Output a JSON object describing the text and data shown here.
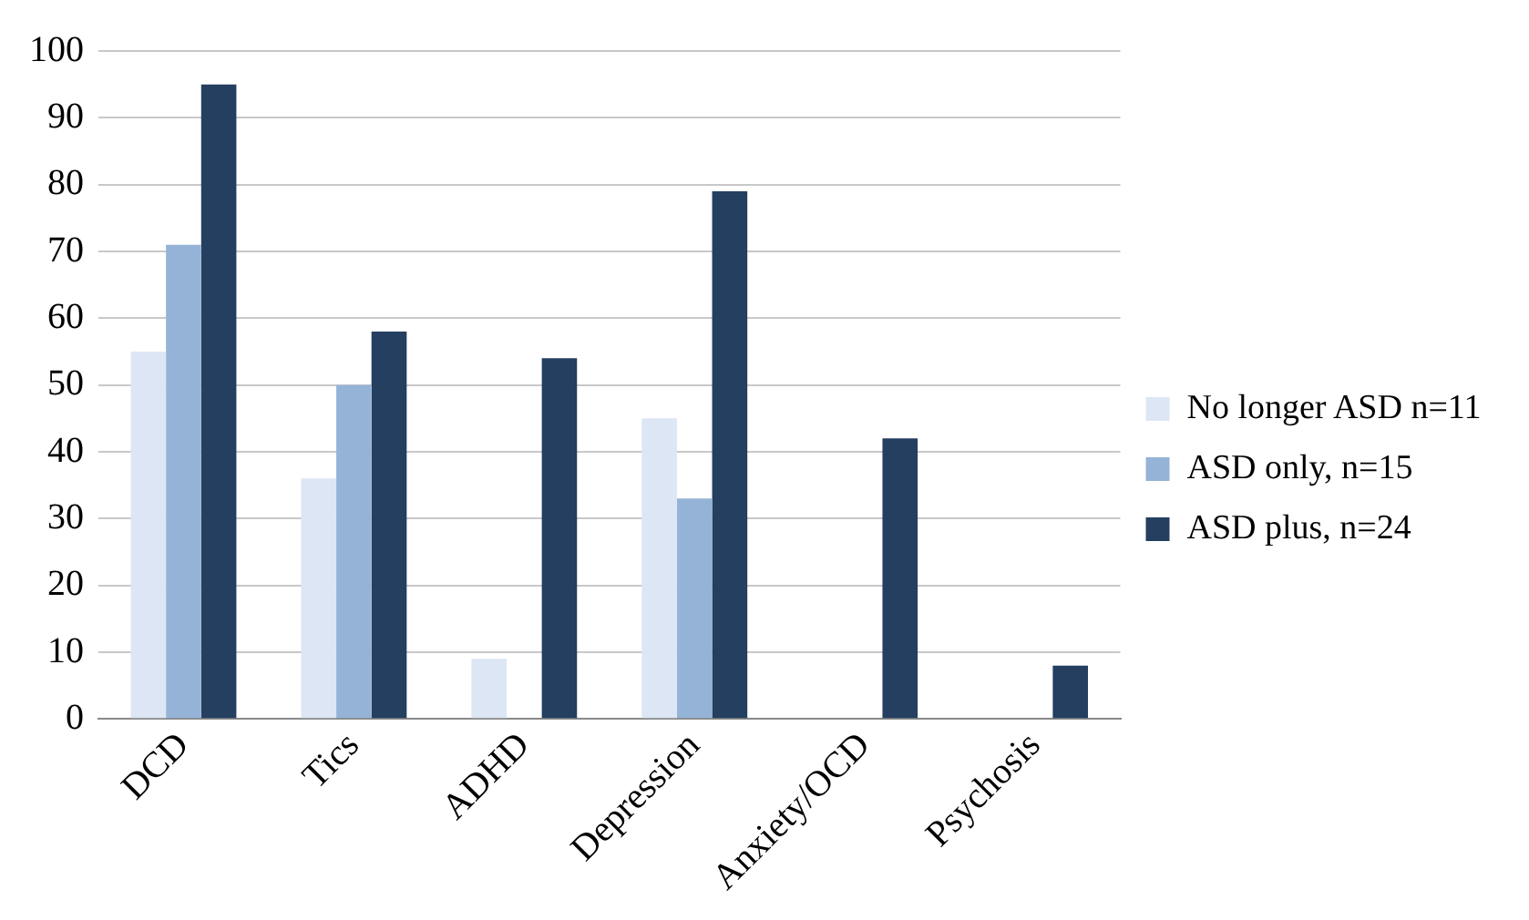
{
  "chart_data": {
    "type": "bar",
    "categories": [
      "DCD",
      "Tics",
      "ADHD",
      "Depression",
      "Anxiety/OCD",
      "Psychosis"
    ],
    "series": [
      {
        "name": "No longer ASD n=11",
        "color": "#dce6f4",
        "values": [
          55,
          36,
          9,
          45,
          0,
          0
        ]
      },
      {
        "name": "ASD only, n=15",
        "color": "#95b3d7",
        "values": [
          71,
          50,
          0,
          33,
          0,
          0
        ]
      },
      {
        "name": "ASD plus, n=24",
        "color": "#243f60",
        "values": [
          95,
          58,
          54,
          79,
          42,
          8
        ]
      }
    ],
    "ylim": [
      0,
      100
    ],
    "yticks": [
      0,
      10,
      20,
      30,
      40,
      50,
      60,
      70,
      80,
      90,
      100
    ],
    "grid": "y",
    "legend": "right"
  }
}
